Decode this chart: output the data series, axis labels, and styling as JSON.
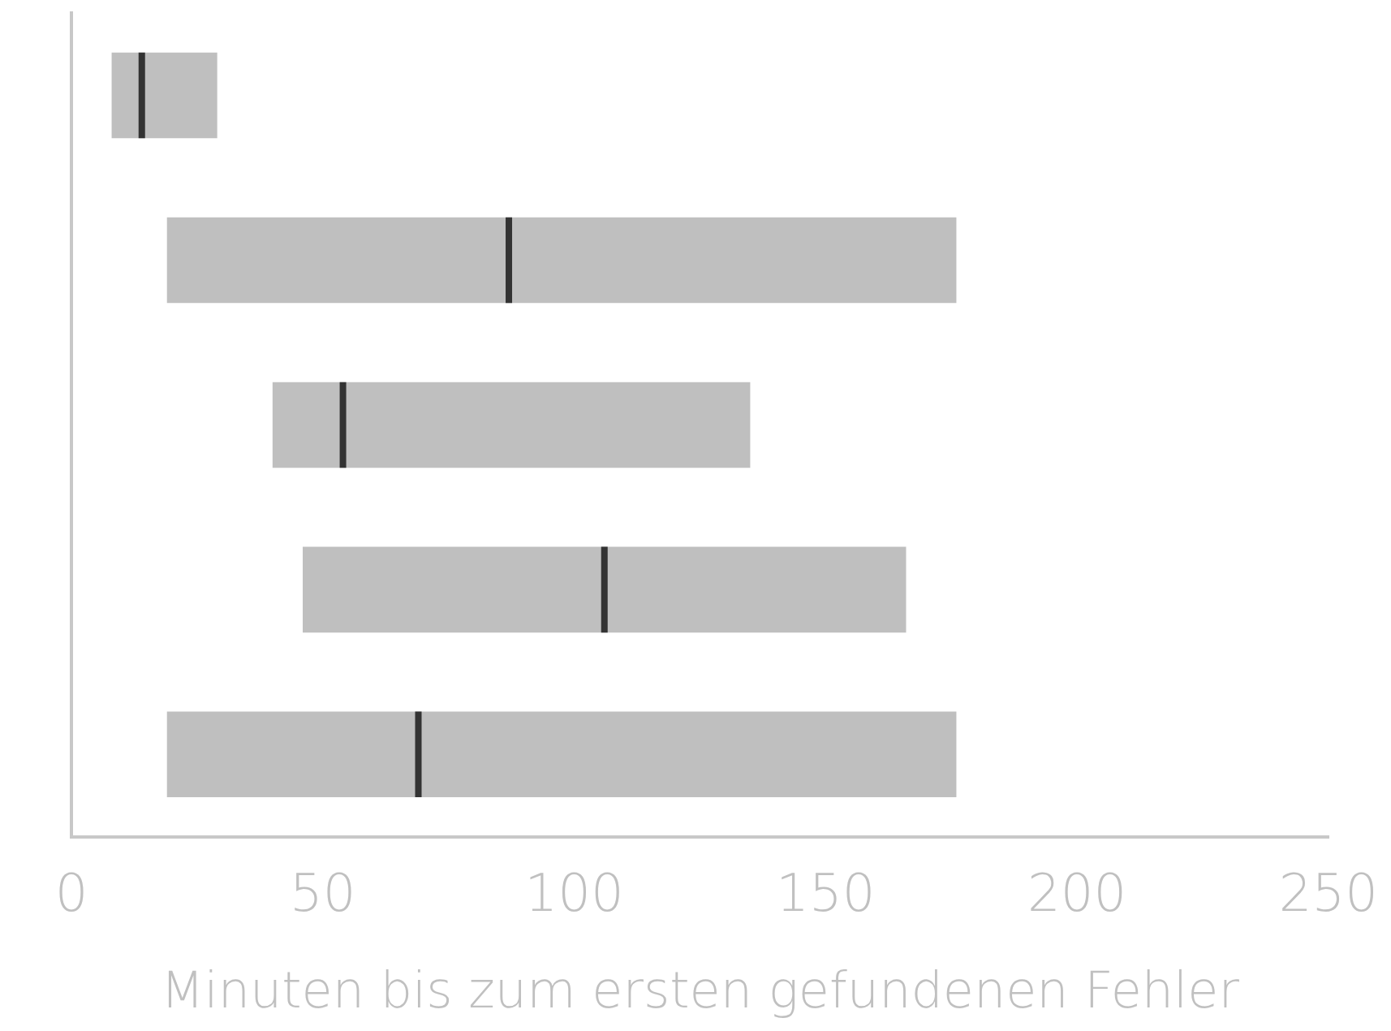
{
  "chart_data": {
    "type": "box",
    "orientation": "horizontal",
    "xlabel": "Minuten bis zum ersten gefundenen Fehler",
    "categories": [
      null,
      null,
      null,
      null,
      null
    ],
    "series": [
      {
        "color": "#bfbfbf",
        "boxes": [
          {
            "low": 8,
            "q1": 8,
            "median": 14,
            "q3": 29,
            "high": 29
          },
          {
            "low": 19,
            "q1": 19,
            "median": 87,
            "q3": 176,
            "high": 176
          },
          {
            "low": 40,
            "q1": 40,
            "median": 54,
            "q3": 135,
            "high": 135
          },
          {
            "low": 46,
            "q1": 46,
            "median": 106,
            "q3": 166,
            "high": 166
          },
          {
            "low": 19,
            "q1": 19,
            "median": 69,
            "q3": 176,
            "high": 176
          }
        ]
      }
    ],
    "xlim": [
      0,
      250
    ],
    "xticks": [
      0,
      50,
      100,
      150,
      200,
      250
    ],
    "tick_labels": "x",
    "grid": false,
    "legend": false
  }
}
